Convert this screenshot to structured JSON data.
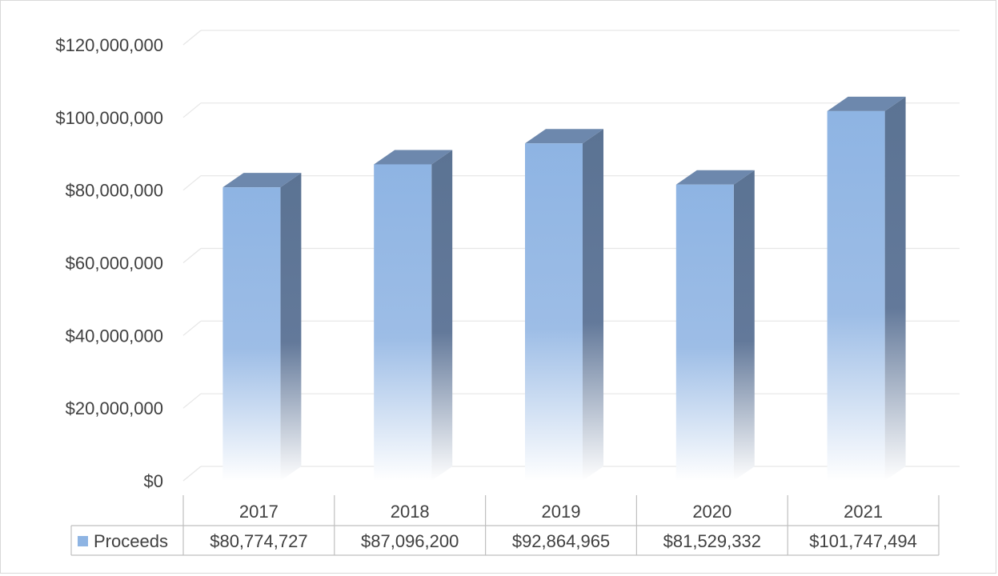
{
  "chart_data": {
    "type": "bar",
    "style": "3d-column",
    "categories": [
      "2017",
      "2018",
      "2019",
      "2020",
      "2021"
    ],
    "series": [
      {
        "name": "Proceeds",
        "values": [
          80774727,
          87096200,
          92864965,
          81529332,
          101747494
        ],
        "display_values": [
          "$80,774,727",
          "$87,096,200",
          "$92,864,965",
          "$81,529,332",
          "$101,747,494"
        ],
        "color": "#8eb4e3",
        "side_color": "#5b7393",
        "top_color": "#6d88ad"
      }
    ],
    "yticks": [
      0,
      20000000,
      40000000,
      60000000,
      80000000,
      100000000,
      120000000
    ],
    "ytick_labels": [
      "$0",
      "$20,000,000",
      "$40,000,000",
      "$60,000,000",
      "$80,000,000",
      "$100,000,000",
      "$120,000,000"
    ],
    "ylim": [
      0,
      120000000
    ],
    "grid": true,
    "legend": "data-table",
    "title": "",
    "xlabel": "",
    "ylabel": ""
  }
}
